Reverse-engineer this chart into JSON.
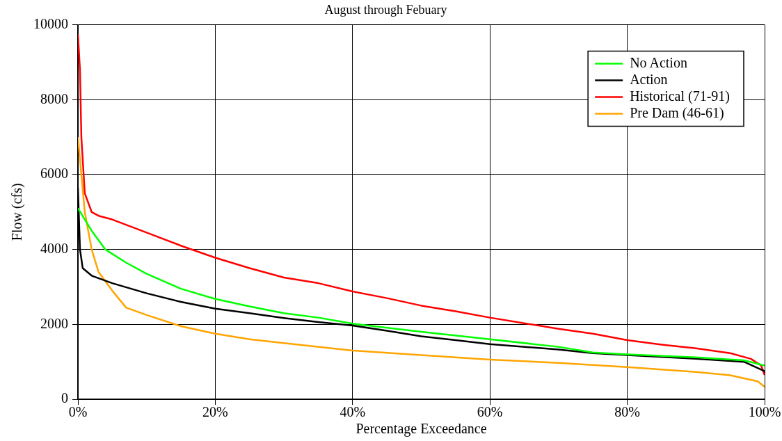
{
  "chart_data": {
    "type": "line",
    "title": "August through Febuary",
    "xlabel": "Percentage Exceedance",
    "ylabel": "Flow (cfs)",
    "xlim": [
      0,
      100
    ],
    "xticks": [
      {
        "value": 0,
        "label": "0%"
      },
      {
        "value": 20,
        "label": "20%"
      },
      {
        "value": 40,
        "label": "40%"
      },
      {
        "value": 60,
        "label": "60%"
      },
      {
        "value": 80,
        "label": "80%"
      },
      {
        "value": 100,
        "label": "100%"
      }
    ],
    "ylim": [
      0,
      10000
    ],
    "yticks": [
      0,
      2000,
      4000,
      6000,
      8000,
      10000
    ],
    "grid": true,
    "legend": "top right",
    "marker": "none",
    "line_style": "solid",
    "series": [
      {
        "name": "No Action",
        "color": "#00ff00",
        "x": [
          0,
          2,
          4,
          7,
          10,
          15,
          20,
          25,
          30,
          35,
          40,
          50,
          60,
          70,
          75,
          80,
          90,
          97,
          100
        ],
        "values": [
          5100,
          4500,
          4000,
          3650,
          3350,
          2950,
          2680,
          2480,
          2300,
          2180,
          2020,
          1800,
          1600,
          1400,
          1250,
          1200,
          1120,
          1040,
          900
        ]
      },
      {
        "name": "Action",
        "color": "#000000",
        "x": [
          0,
          0.3,
          0.7,
          2,
          5,
          10,
          15,
          20,
          25,
          30,
          35,
          40,
          45,
          50,
          55,
          60,
          70,
          75,
          80,
          90,
          97,
          100
        ],
        "values": [
          5650,
          4000,
          3500,
          3300,
          3100,
          2830,
          2600,
          2420,
          2300,
          2170,
          2060,
          1970,
          1830,
          1680,
          1580,
          1470,
          1330,
          1230,
          1180,
          1080,
          1000,
          750
        ]
      },
      {
        "name": "Historical (71-91)",
        "color": "#ff0000",
        "x": [
          0,
          0.3,
          0.5,
          1,
          2,
          3,
          5,
          10,
          15,
          20,
          25,
          30,
          35,
          40,
          45,
          50,
          55,
          60,
          65,
          70,
          75,
          80,
          85,
          90,
          95,
          98,
          99.5,
          100
        ],
        "values": [
          9750,
          8800,
          7000,
          5500,
          5000,
          4900,
          4800,
          4450,
          4100,
          3780,
          3500,
          3250,
          3100,
          2880,
          2700,
          2500,
          2350,
          2180,
          2030,
          1880,
          1750,
          1580,
          1460,
          1360,
          1230,
          1080,
          900,
          650
        ]
      },
      {
        "name": "Pre Dam (46-61)",
        "color": "#ffa500",
        "x": [
          0,
          0.5,
          1,
          2,
          3,
          5,
          7,
          10,
          15,
          20,
          25,
          30,
          40,
          50,
          60,
          70,
          80,
          90,
          95,
          99,
          100
        ],
        "values": [
          7000,
          6000,
          5000,
          4000,
          3400,
          2900,
          2450,
          2250,
          1950,
          1750,
          1600,
          1500,
          1300,
          1180,
          1060,
          970,
          860,
          730,
          640,
          480,
          330
        ]
      }
    ]
  }
}
